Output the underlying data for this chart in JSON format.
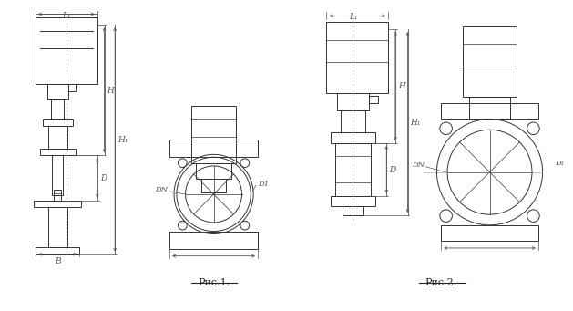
{
  "bg_color": "#ffffff",
  "line_color": "#333333",
  "dim_color": "#555555",
  "fig1_label": "Рис.1.",
  "fig2_label": "Рис.2.",
  "label_L1": "L₁",
  "label_H": "H",
  "label_H1": "H₁",
  "label_D": "D",
  "label_B": "B",
  "label_DN": "DN",
  "label_D1": "D1",
  "label_DN2": "DN",
  "label_D12": "D₁"
}
